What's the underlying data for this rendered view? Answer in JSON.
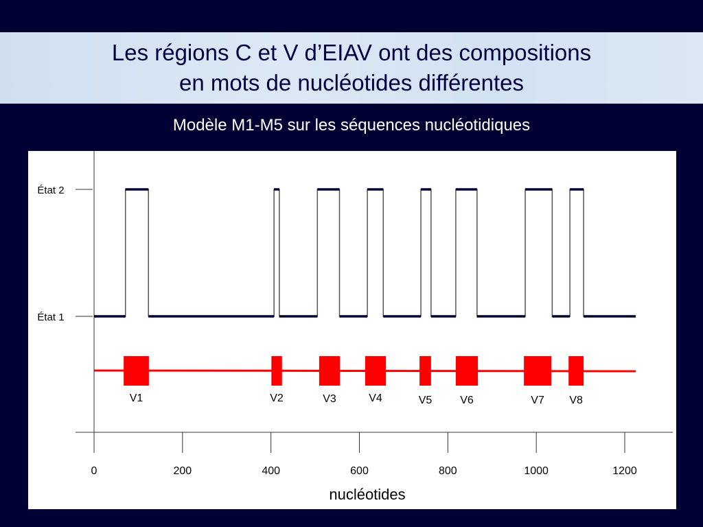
{
  "title": {
    "line1": "Les régions C et V d’EIAV ont des compositions",
    "line2": "en mots de nucléotides différentes"
  },
  "subtitle": "Modèle M1-M5 sur les séquences nucléotidiques",
  "chart_data": {
    "type": "line",
    "title": "Modèle M1-M5 sur les séquences nucléotidiques",
    "xlabel": "nucléotides",
    "ylabel": "",
    "xlim": [
      0,
      1200
    ],
    "x_ticks": [
      "0",
      "200",
      "400",
      "600",
      "800",
      "1000",
      "1200"
    ],
    "y_ticks": [
      "État 1",
      "État 2"
    ],
    "sequence_length": 1225,
    "state2_segments": [
      [
        71,
        123
      ],
      [
        407,
        419
      ],
      [
        505,
        555
      ],
      [
        618,
        654
      ],
      [
        739,
        762
      ],
      [
        818,
        866
      ],
      [
        975,
        1036
      ],
      [
        1076,
        1107
      ]
    ],
    "variable_regions": [
      {
        "label": "V1",
        "start": 67,
        "end": 124
      },
      {
        "label": "V2",
        "start": 401,
        "end": 425
      },
      {
        "label": "V3",
        "start": 509,
        "end": 556
      },
      {
        "label": "V4",
        "start": 613,
        "end": 660
      },
      {
        "label": "V5",
        "start": 736,
        "end": 762
      },
      {
        "label": "V6",
        "start": 818,
        "end": 868
      },
      {
        "label": "V7",
        "start": 972,
        "end": 1034
      },
      {
        "label": "V8",
        "start": 1073,
        "end": 1107
      }
    ],
    "colors": {
      "state_line": "#000033",
      "regions": "#ff0000"
    }
  }
}
